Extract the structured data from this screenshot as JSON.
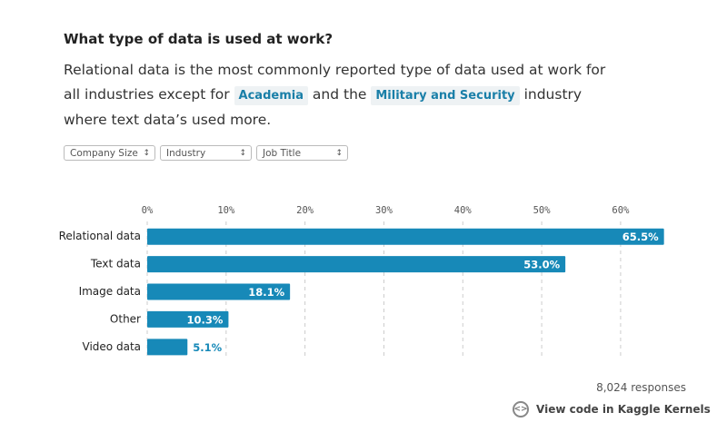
{
  "chart_data": {
    "type": "bar",
    "orientation": "horizontal",
    "title": "What type of data is used at work?",
    "description": [
      "Relational data is the most commonly reported type of data used at work for all industries except for",
      "Academia",
      "and the",
      "Military and Security",
      "industry where text data’s used more."
    ],
    "filters": [
      "Company Size",
      "Industry",
      "Job Title"
    ],
    "categories": [
      "Relational data",
      "Text data",
      "Image data",
      "Other",
      "Video data"
    ],
    "values": [
      65.5,
      53.0,
      18.1,
      10.3,
      5.1
    ],
    "value_labels": [
      "65.5%",
      "53.0%",
      "18.1%",
      "10.3%",
      "5.1%"
    ],
    "color": "#1789b8",
    "xlim": [
      0,
      66
    ],
    "xticks": [
      {
        "value": 0,
        "label": "0%"
      },
      {
        "value": 10,
        "label": "10%"
      },
      {
        "value": 20,
        "label": "20%"
      },
      {
        "value": 30,
        "label": "30%"
      },
      {
        "value": 40,
        "label": "40%"
      },
      {
        "value": 50,
        "label": "50%"
      },
      {
        "value": 60,
        "label": "60%"
      }
    ],
    "grid": true,
    "responses": "8,024 responses",
    "link": "View code in Kaggle Kernels"
  }
}
